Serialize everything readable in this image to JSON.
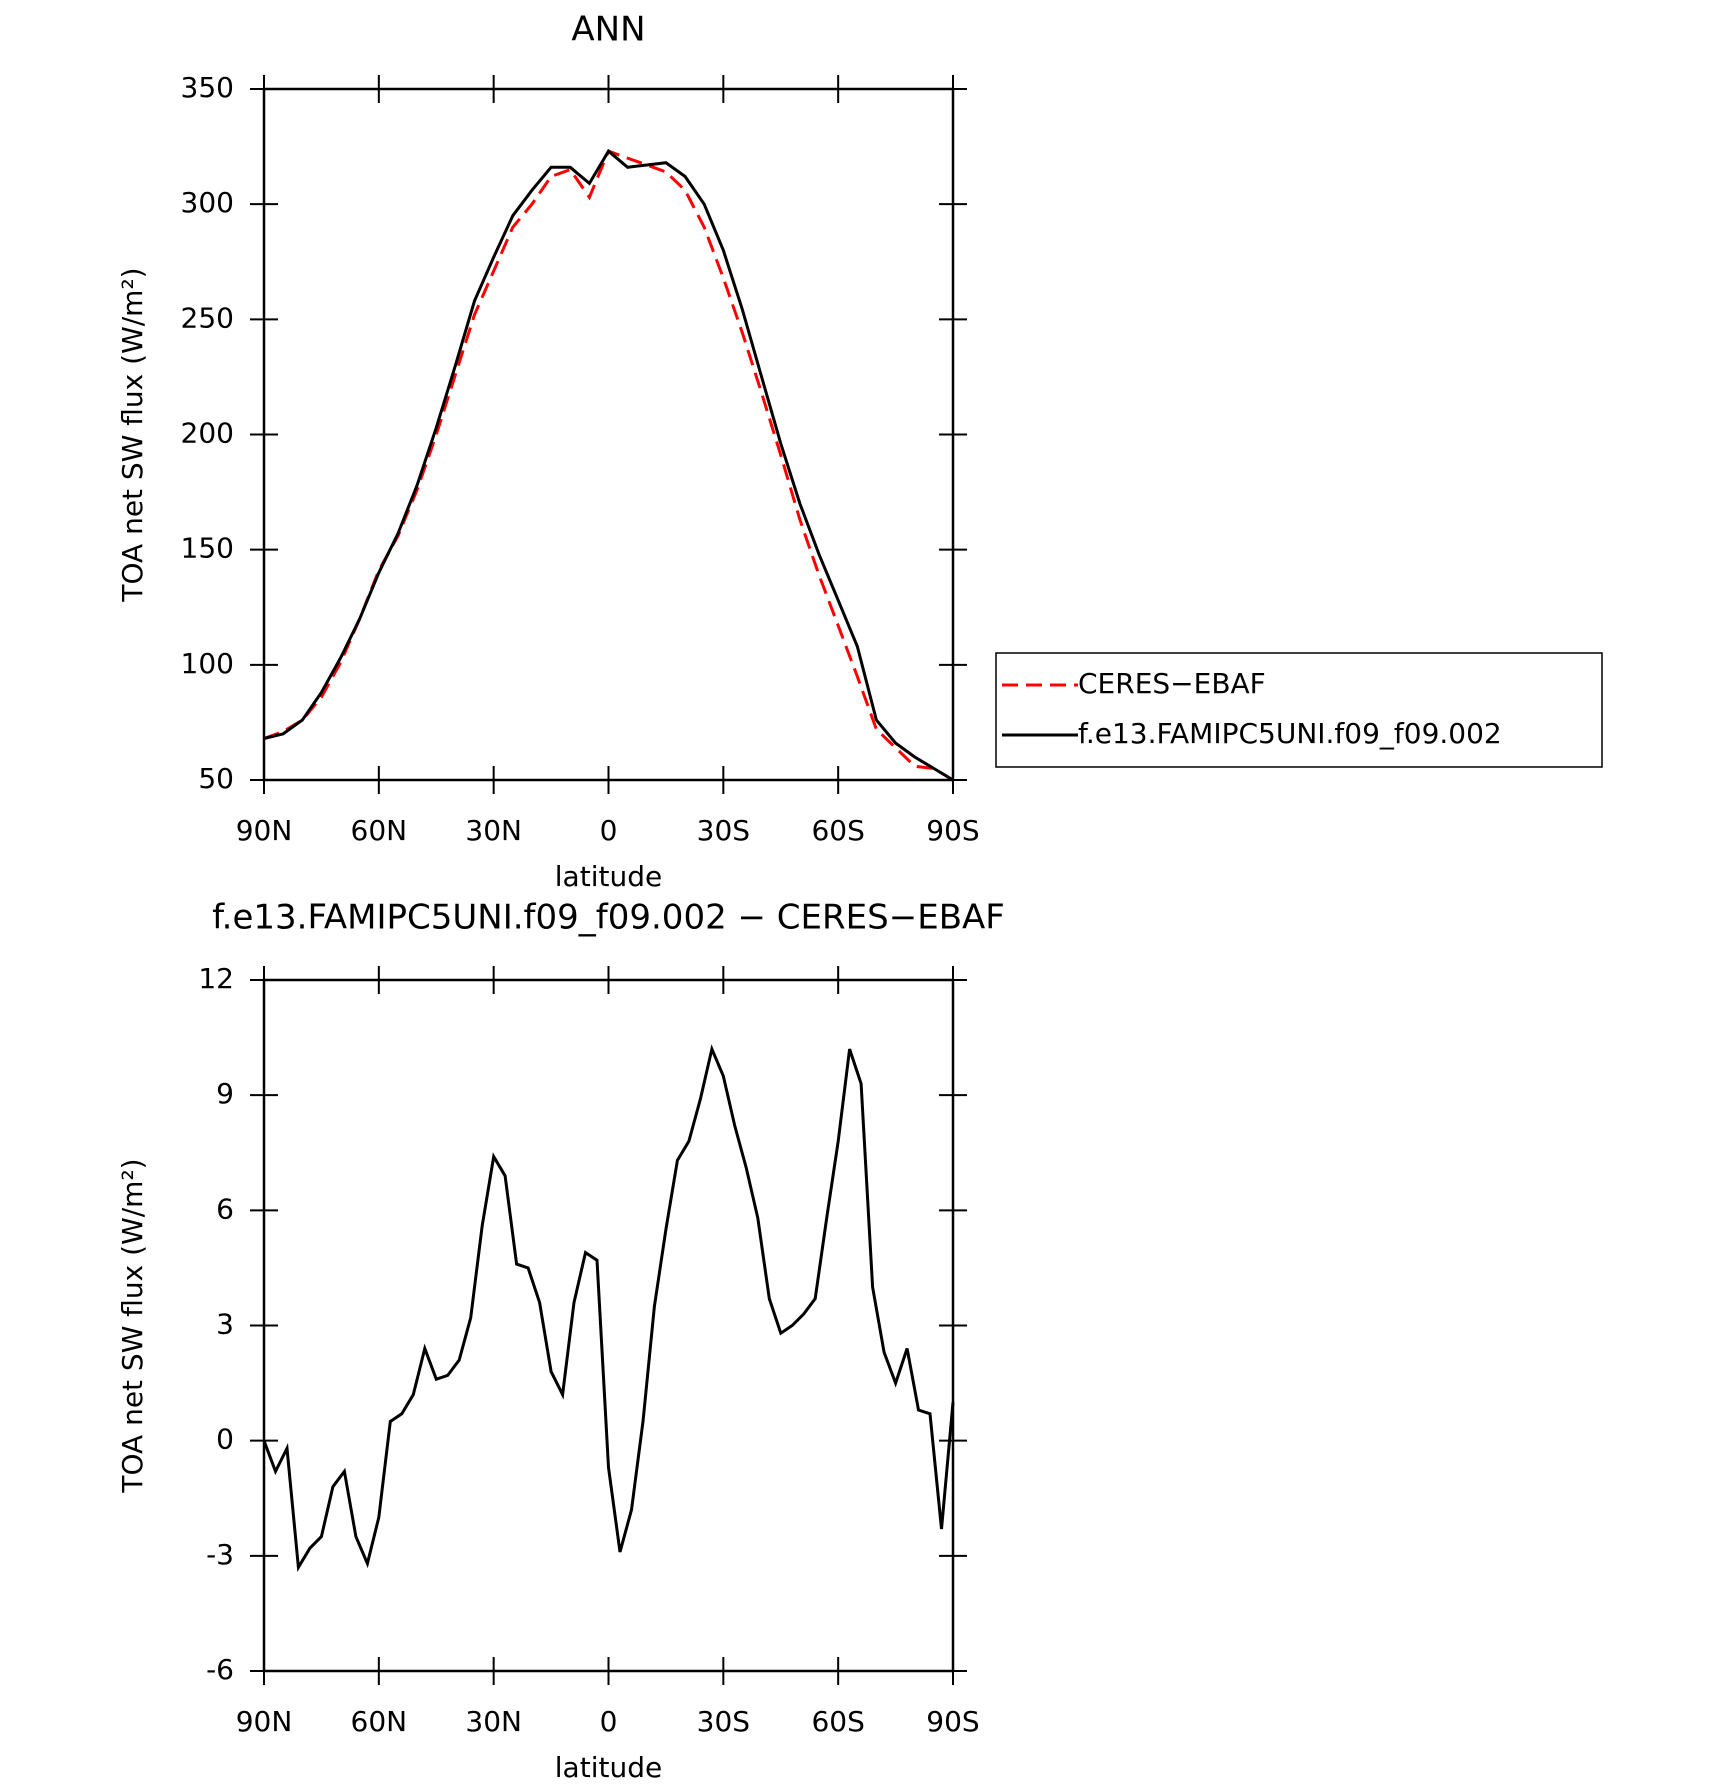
{
  "chart_data": [
    {
      "type": "line",
      "title": "ANN",
      "xlabel": "latitude",
      "ylabel": "TOA net SW flux (W/m²)",
      "x": [
        90,
        85,
        80,
        75,
        70,
        65,
        60,
        55,
        50,
        45,
        40,
        35,
        30,
        25,
        20,
        15,
        10,
        5,
        0,
        -5,
        -10,
        -15,
        -20,
        -25,
        -30,
        -35,
        -40,
        -45,
        -50,
        -55,
        -60,
        -65,
        -70,
        -75,
        -80,
        -85,
        -90
      ],
      "series": [
        {
          "name": "CERES−EBAF",
          "color": "#ff0000",
          "dash": true,
          "values": [
            68,
            71,
            76,
            86,
            101,
            120,
            141,
            156,
            176,
            200,
            226,
            252,
            271,
            290,
            300,
            312,
            315,
            303,
            323,
            320,
            317,
            314,
            306,
            290,
            268,
            244,
            218,
            191,
            163,
            139,
            117,
            95,
            72,
            64,
            56,
            55,
            50
          ]
        },
        {
          "name": "f.e13.FAMIPC5UNI.f09_f09.002",
          "color": "#000000",
          "dash": false,
          "values": [
            68,
            70,
            76,
            88,
            103,
            120,
            140,
            157,
            178,
            203,
            230,
            258,
            277,
            295,
            306,
            316,
            316,
            309,
            323,
            316,
            317,
            318,
            312,
            300,
            280,
            254,
            225,
            196,
            170,
            148,
            128,
            108,
            76,
            66,
            60,
            55,
            50
          ]
        }
      ],
      "xlim": [
        90,
        -90
      ],
      "xticks": [
        {
          "value": 90,
          "label": "90N"
        },
        {
          "value": 60,
          "label": "60N"
        },
        {
          "value": 30,
          "label": "30N"
        },
        0,
        {
          "value": -30,
          "label": "30S"
        },
        {
          "value": -60,
          "label": "60S"
        },
        {
          "value": -90,
          "label": "90S"
        }
      ],
      "ylim": [
        50,
        350
      ],
      "yticks": [
        50,
        100,
        150,
        200,
        250,
        300,
        350
      ]
    },
    {
      "type": "line",
      "title": "f.e13.FAMIPC5UNI.f09_f09.002 − CERES−EBAF",
      "xlabel": "latitude",
      "ylabel": "TOA net SW flux (W/m²)",
      "x": [
        90,
        87,
        84,
        81,
        78,
        75,
        72,
        69,
        66,
        63,
        60,
        57,
        54,
        51,
        48,
        45,
        42,
        39,
        36,
        33,
        30,
        27,
        24,
        21,
        18,
        15,
        12,
        9,
        6,
        3,
        0,
        -3,
        -6,
        -9,
        -12,
        -15,
        -18,
        -21,
        -24,
        -27,
        -30,
        -33,
        -36,
        -39,
        -42,
        -45,
        -48,
        -51,
        -54,
        -57,
        -60,
        -63,
        -66,
        -69,
        -72,
        -75,
        -78,
        -81,
        -84,
        -87,
        -90
      ],
      "color": "#000000",
      "values": [
        0,
        -0.8,
        -0.2,
        -3.3,
        -2.8,
        -2.5,
        -1.2,
        -0.8,
        -2.5,
        -3.2,
        -2.0,
        0.5,
        0.7,
        1.2,
        2.4,
        1.6,
        1.7,
        2.1,
        3.2,
        5.6,
        7.4,
        6.9,
        4.6,
        4.5,
        3.6,
        1.8,
        1.2,
        3.6,
        4.9,
        4.7,
        -0.7,
        -2.9,
        -1.8,
        0.5,
        3.5,
        5.5,
        7.3,
        7.8,
        8.9,
        10.2,
        9.5,
        8.2,
        7.1,
        5.8,
        3.7,
        2.8,
        3.0,
        3.3,
        3.7,
        5.8,
        7.8,
        10.2,
        9.3,
        4.0,
        2.3,
        1.5,
        2.4,
        0.8,
        0.7,
        -2.3,
        1.0
      ],
      "xlim": [
        90,
        -90
      ],
      "xticks": [
        {
          "value": 90,
          "label": "90N"
        },
        {
          "value": 60,
          "label": "60N"
        },
        {
          "value": 30,
          "label": "30N"
        },
        0,
        {
          "value": -30,
          "label": "30S"
        },
        {
          "value": -60,
          "label": "60S"
        },
        {
          "value": -90,
          "label": "90S"
        }
      ],
      "ylim": [
        -6,
        12
      ],
      "yticks": [
        -6,
        -3,
        0,
        3,
        6,
        9,
        12
      ]
    }
  ]
}
